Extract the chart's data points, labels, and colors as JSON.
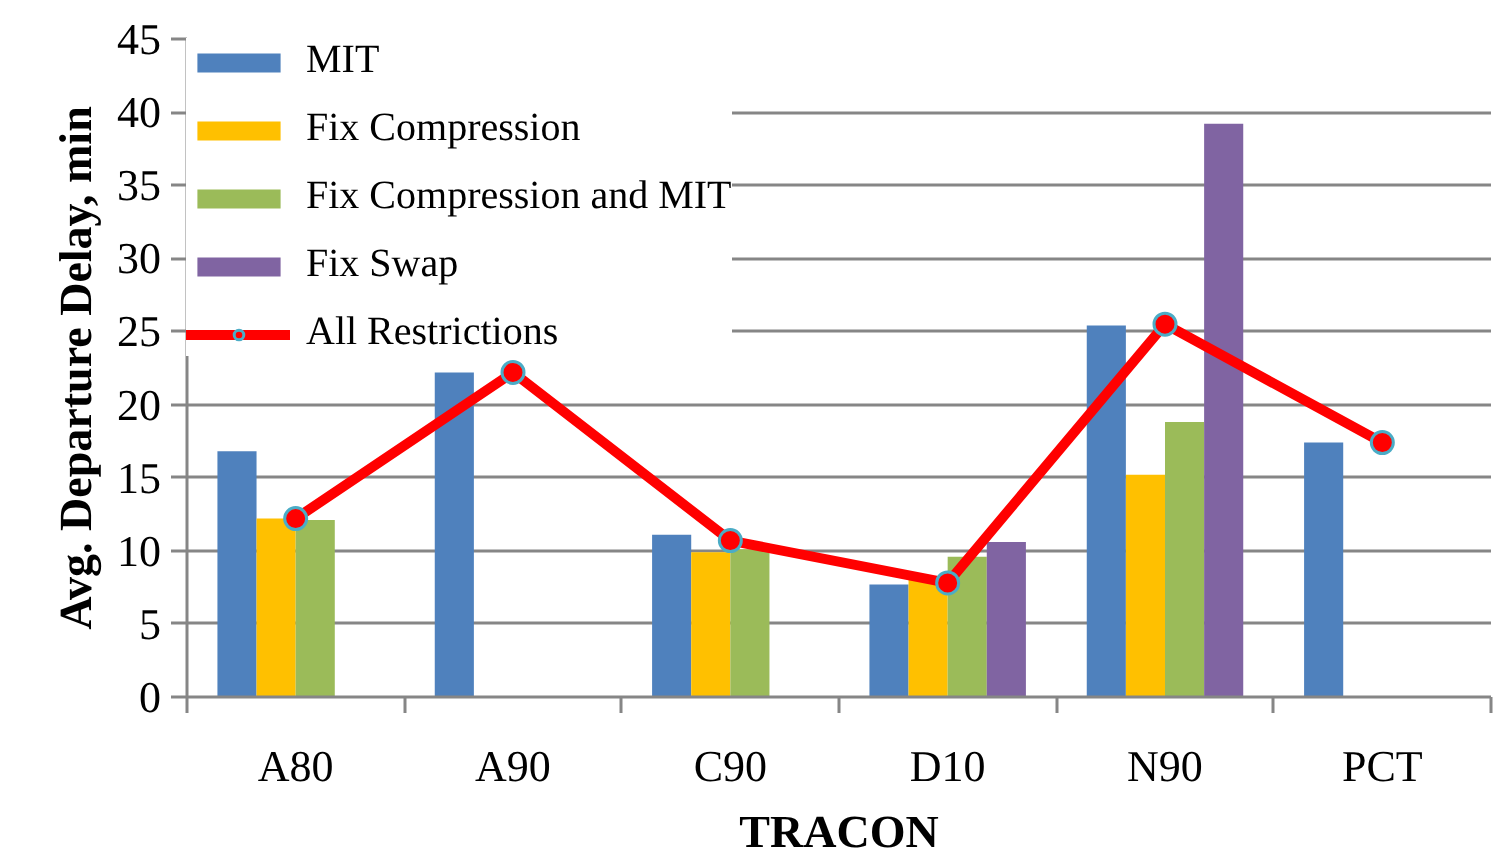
{
  "chart_data": {
    "type": "bar",
    "xlabel": "TRACON",
    "ylabel": "Avg. Departure Delay, min",
    "categories": [
      "A80",
      "A90",
      "C90",
      "D10",
      "N90",
      "PCT"
    ],
    "series": [
      {
        "name": "MIT",
        "color": "#4f81bd",
        "values": [
          16.8,
          22.2,
          11.1,
          7.7,
          25.4,
          17.4
        ]
      },
      {
        "name": "Fix Compression",
        "color": "#ffc000",
        "values": [
          12.2,
          null,
          9.9,
          8.1,
          15.2,
          null
        ]
      },
      {
        "name": "Fix Compression and MIT",
        "color": "#9bbb59",
        "values": [
          12.1,
          null,
          10.1,
          9.6,
          18.8,
          null
        ]
      },
      {
        "name": "Fix Swap",
        "color": "#8064a2",
        "values": [
          null,
          null,
          null,
          10.6,
          39.2,
          null
        ]
      },
      {
        "name": "All Restrictions",
        "type": "line",
        "color": "#ff0000",
        "marker": "circle",
        "values": [
          12.2,
          22.2,
          10.7,
          7.8,
          25.5,
          17.4
        ]
      }
    ],
    "ylim": [
      0,
      45
    ],
    "yticks": [
      0,
      5,
      10,
      15,
      20,
      25,
      30,
      35,
      40,
      45
    ],
    "grid": "y",
    "legend": "top left"
  }
}
